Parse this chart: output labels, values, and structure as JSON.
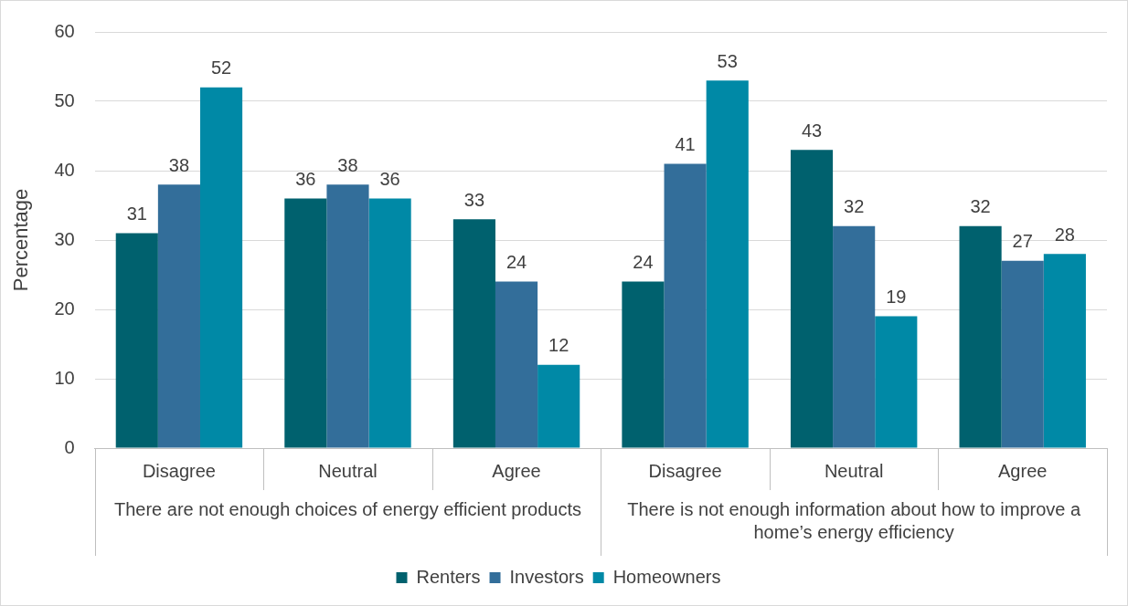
{
  "chart_data": {
    "type": "bar",
    "ylabel": "Percentage",
    "categories": [
      "Disagree",
      "Neutral",
      "Agree",
      "Disagree",
      "Neutral",
      "Agree"
    ],
    "annotations": [
      "There are not enough choices of energy efficient products",
      "There is not enough information about how to improve a home’s energy efficiency"
    ],
    "series": [
      {
        "name": "Renters",
        "color": "#00616e",
        "values": [
          31,
          36,
          33,
          24,
          43,
          32
        ]
      },
      {
        "name": "Investors",
        "color": "#336e9a",
        "values": [
          38,
          38,
          24,
          41,
          32,
          27
        ]
      },
      {
        "name": "Homeowners",
        "color": "#0089a6",
        "values": [
          52,
          36,
          12,
          53,
          19,
          28
        ]
      }
    ],
    "ylim": [
      0,
      60
    ],
    "yticks": [
      0,
      10,
      20,
      30,
      40,
      50,
      60
    ],
    "grid": "y",
    "legend": "bottom",
    "data_labels": true
  }
}
